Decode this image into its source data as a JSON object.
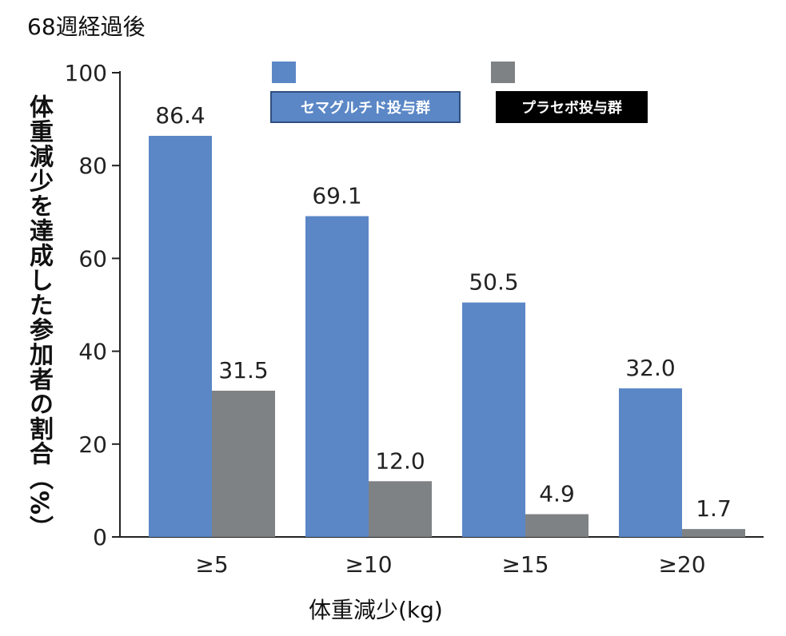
{
  "chart_data": {
    "type": "bar",
    "title": "68週経過後",
    "xlabel": "体重減少(kg)",
    "ylabel": "体重減少を達成した参加者の割合（%）",
    "categories": [
      "≥5",
      "≥10",
      "≥15",
      "≥20"
    ],
    "ylim": [
      0,
      100
    ],
    "yticks": [
      "0",
      "20",
      "40",
      "60",
      "80",
      "100"
    ],
    "grid": false,
    "legend_position": "top",
    "series": [
      {
        "name": "セマグルチド投与群",
        "color": "#5b87c6",
        "values": [
          86.4,
          69.1,
          50.5,
          32.0
        ],
        "labels": [
          "86.4",
          "69.1",
          "50.5",
          "32.0"
        ]
      },
      {
        "name": "プラセボ投与群",
        "color": "#7f8285",
        "values": [
          31.5,
          12.0,
          4.9,
          1.7
        ],
        "labels": [
          "31.5",
          "12.0",
          "4.9",
          "1.7"
        ]
      }
    ]
  }
}
